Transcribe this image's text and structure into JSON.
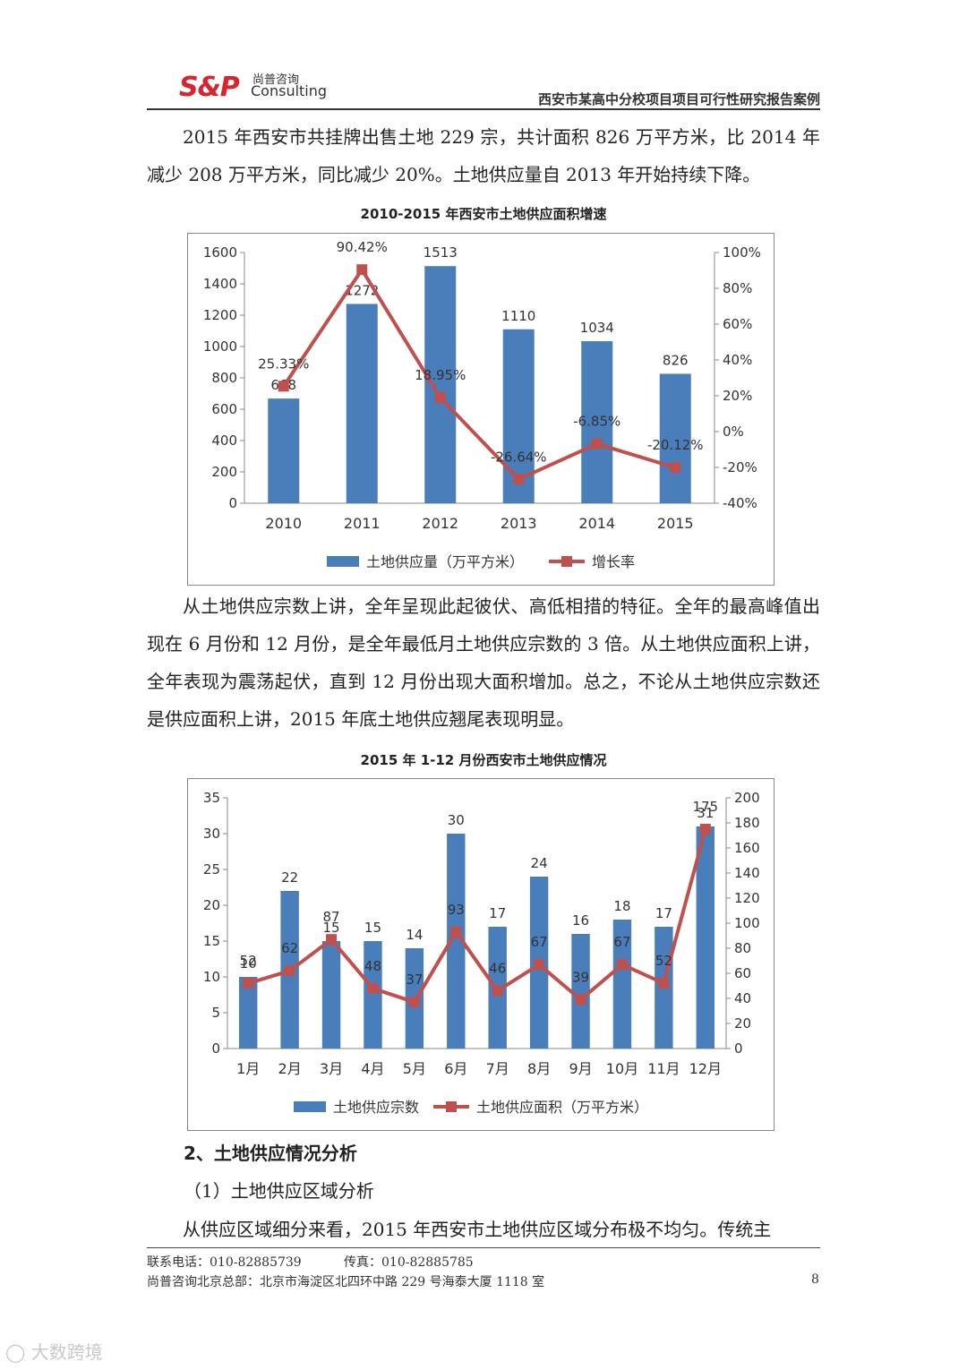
{
  "header": {
    "logo_text": "S&P",
    "logo_cn": "尚普咨询",
    "logo_en": "Consulting",
    "doc_title": "西安市某高中分校项目项目可行性研究报告案例"
  },
  "paragraphs": {
    "p1": "2015 年西安市共挂牌出售土地 229 宗，共计面积 826 万平方米，比 2014 年减少 208 万平方米，同比减少 20%。土地供应量自 2013 年开始持续下降。",
    "p2": "从土地供应宗数上讲，全年呈现此起彼伏、高低相措的特征。全年的最高峰值出现在 6 月份和 12 月份，是全年最低月土地供应宗数的 3 倍。从土地供应面积上讲，全年表现为震荡起伏，直到 12 月份出现大面积增加。总之，不论从土地供应宗数还是供应面积上讲，2015 年底土地供应翘尾表现明显。",
    "p3": "从供应区域细分来看，2015 年西安市土地供应区域分布极不均匀。传统主"
  },
  "section": {
    "heading": "2、土地供应情况分析",
    "subheading": "（1）土地供应区域分析"
  },
  "footer": {
    "phone": "联系电话：010-82885739",
    "fax": "传真：010-82885785",
    "address": "尚普咨询北京总部：北京市海淀区北四环中路 229 号海泰大厦 1118 室",
    "page_number": "8"
  },
  "watermark": "大数跨境",
  "chart_data": [
    {
      "type": "bar",
      "title": "2010-2015 年西安市土地供应面积增速",
      "categories": [
        "2010",
        "2011",
        "2012",
        "2013",
        "2014",
        "2015"
      ],
      "series": [
        {
          "name": "土地供应量（万平方米）",
          "type": "bar",
          "axis": "left",
          "color": "#4a7ebb",
          "values": [
            668,
            1272,
            1513,
            1110,
            1034,
            826
          ],
          "labels": [
            "668",
            "1272",
            "1513",
            "1110",
            "1034",
            "826"
          ]
        },
        {
          "name": "增长率",
          "type": "line",
          "axis": "right",
          "color": "#c0504d",
          "values": [
            25.33,
            90.42,
            18.95,
            -26.64,
            -6.85,
            -20.12
          ],
          "labels": [
            "25.33%",
            "90.42%",
            "18.95%",
            "-26.64%",
            "-6.85%",
            "-20.12%"
          ]
        }
      ],
      "ylim_left": [
        0,
        1600
      ],
      "yticks_left": [
        "0",
        "200",
        "400",
        "600",
        "800",
        "1000",
        "1200",
        "1400",
        "1600"
      ],
      "ylim_right": [
        -40,
        100
      ],
      "yticks_right": [
        "-40%",
        "-20%",
        "0%",
        "20%",
        "40%",
        "60%",
        "80%",
        "100%"
      ],
      "legend_position": "bottom"
    },
    {
      "type": "bar",
      "title": "2015 年 1-12 月份西安市土地供应情况",
      "categories": [
        "1月",
        "2月",
        "3月",
        "4月",
        "5月",
        "6月",
        "7月",
        "8月",
        "9月",
        "10月",
        "11月",
        "12月"
      ],
      "series": [
        {
          "name": "土地供应宗数",
          "type": "bar",
          "axis": "left",
          "color": "#4a7ebb",
          "values": [
            10,
            22,
            15,
            15,
            14,
            30,
            17,
            24,
            16,
            18,
            17,
            31
          ],
          "labels": [
            "10",
            "22",
            "15",
            "15",
            "14",
            "30",
            "17",
            "24",
            "16",
            "18",
            "17",
            "31"
          ]
        },
        {
          "name": "土地供应面积（万平方米）",
          "type": "line",
          "axis": "right",
          "color": "#c0504d",
          "values": [
            52,
            62,
            87,
            48,
            37,
            93,
            46,
            67,
            39,
            67,
            52,
            175
          ],
          "labels": [
            "52",
            "62",
            "87",
            "48",
            "37",
            "93",
            "46",
            "67",
            "39",
            "67",
            "52",
            "175"
          ]
        }
      ],
      "ylim_left": [
        0,
        35
      ],
      "yticks_left": [
        "0",
        "5",
        "10",
        "15",
        "20",
        "25",
        "30",
        "35"
      ],
      "ylim_right": [
        0,
        200
      ],
      "yticks_right": [
        "0",
        "20",
        "40",
        "60",
        "80",
        "100",
        "120",
        "140",
        "160",
        "180",
        "200"
      ],
      "legend_position": "bottom"
    }
  ]
}
